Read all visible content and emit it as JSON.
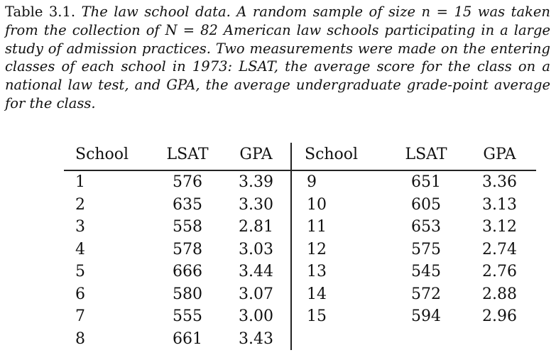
{
  "caption": {
    "lead": "Table 3.1.",
    "text": "The law school data. A random sample of size n = 15 was taken from the collection of N = 82 American law schools participating in a large study of admission practices. Two measurements were made on the entering classes of each school in 1973: LSAT, the average score for the class on a national law test, and GPA, the average undergraduate grade-point average for the class."
  },
  "table": {
    "headers": [
      "School",
      "LSAT",
      "GPA",
      "School",
      "LSAT",
      "GPA"
    ],
    "left": [
      {
        "school": "1",
        "lsat": "576",
        "gpa": "3.39"
      },
      {
        "school": "2",
        "lsat": "635",
        "gpa": "3.30"
      },
      {
        "school": "3",
        "lsat": "558",
        "gpa": "2.81"
      },
      {
        "school": "4",
        "lsat": "578",
        "gpa": "3.03"
      },
      {
        "school": "5",
        "lsat": "666",
        "gpa": "3.44"
      },
      {
        "school": "6",
        "lsat": "580",
        "gpa": "3.07"
      },
      {
        "school": "7",
        "lsat": "555",
        "gpa": "3.00"
      },
      {
        "school": "8",
        "lsat": "661",
        "gpa": "3.43"
      }
    ],
    "right": [
      {
        "school": "9",
        "lsat": "651",
        "gpa": "3.36"
      },
      {
        "school": "10",
        "lsat": "605",
        "gpa": "3.13"
      },
      {
        "school": "11",
        "lsat": "653",
        "gpa": "3.12"
      },
      {
        "school": "12",
        "lsat": "575",
        "gpa": "2.74"
      },
      {
        "school": "13",
        "lsat": "545",
        "gpa": "2.76"
      },
      {
        "school": "14",
        "lsat": "572",
        "gpa": "2.88"
      },
      {
        "school": "15",
        "lsat": "594",
        "gpa": "2.96"
      }
    ]
  }
}
